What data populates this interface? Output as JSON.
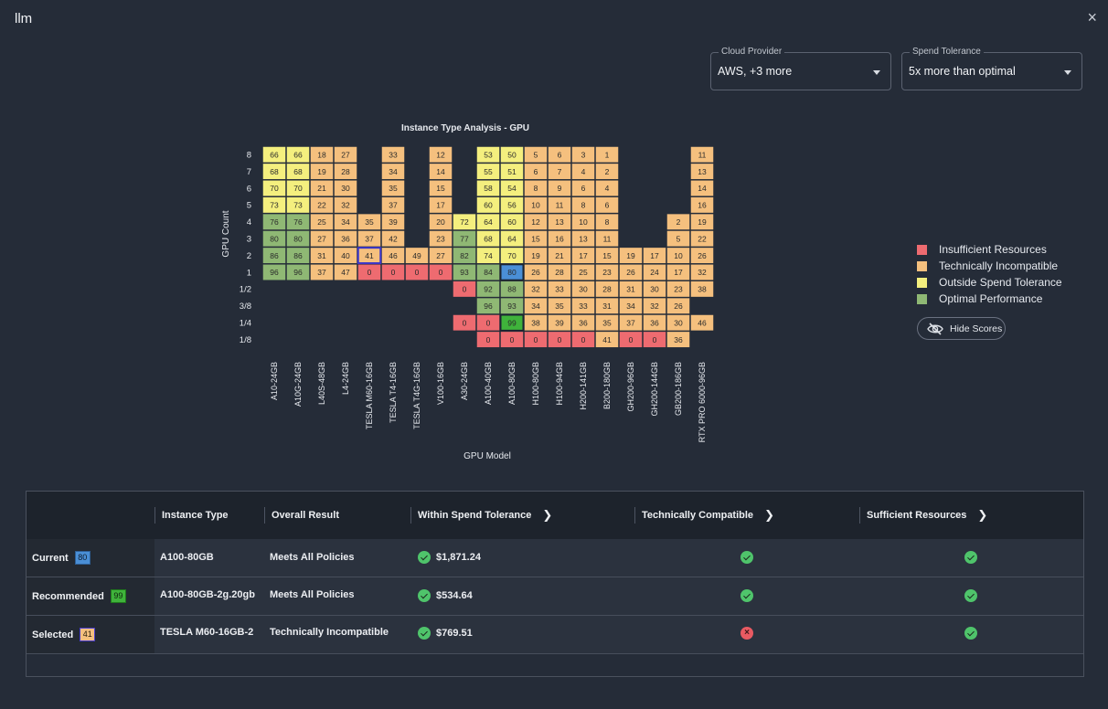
{
  "window": {
    "title": "llm",
    "close_label": "×"
  },
  "filters": {
    "cloud_provider": {
      "label": "Cloud Provider",
      "value": "AWS, +3 more"
    },
    "spend_tolerance": {
      "label": "Spend Tolerance",
      "value": "5x more than optimal"
    }
  },
  "colors": {
    "red": "#ee6b70",
    "orange": "#f5c07e",
    "yellow": "#f4ef7e",
    "green": "#8fb874",
    "blue": "#4a8fd6",
    "darkgreen": "#3fb33b"
  },
  "chart_data": {
    "type": "heatmap",
    "title": "Instance Type Analysis - GPU",
    "xlabel": "GPU Model",
    "ylabel": "GPU Count",
    "x": [
      "A10-24GB",
      "A10G-24GB",
      "L40S-48GB",
      "L4-24GB",
      "TESLA M60-16GB",
      "TESLA T4-16GB",
      "TESLA T4G-16GB",
      "V100-16GB",
      "A30-24GB",
      "A100-40GB",
      "A100-80GB",
      "H100-80GB",
      "H100-94GB",
      "H200-141GB",
      "B200-180GB",
      "GH200-96GB",
      "GH200-144GB",
      "GB200-186GB",
      "RTX PRO 6000-96GB"
    ],
    "y": [
      "8",
      "7",
      "6",
      "5",
      "4",
      "3",
      "2",
      "1",
      "1/2",
      "3/8",
      "1/4",
      "1/8"
    ],
    "category_codes": {
      "r": "Insufficient Resources",
      "o": "Technically Incompatible",
      "y": "Outside Spend Tolerance",
      "g": "Optimal Performance",
      "b": "Current",
      "G": "Recommended"
    },
    "cells": [
      [
        [
          66,
          "y"
        ],
        [
          66,
          "y"
        ],
        [
          18,
          "o"
        ],
        [
          27,
          "o"
        ],
        null,
        [
          33,
          "o"
        ],
        null,
        [
          12,
          "o"
        ],
        null,
        [
          53,
          "y"
        ],
        [
          50,
          "y"
        ],
        [
          5,
          "o"
        ],
        [
          6,
          "o"
        ],
        [
          3,
          "o"
        ],
        [
          1,
          "o"
        ],
        null,
        null,
        null,
        [
          11,
          "o"
        ]
      ],
      [
        [
          68,
          "y"
        ],
        [
          68,
          "y"
        ],
        [
          19,
          "o"
        ],
        [
          28,
          "o"
        ],
        null,
        [
          34,
          "o"
        ],
        null,
        [
          14,
          "o"
        ],
        null,
        [
          55,
          "y"
        ],
        [
          51,
          "y"
        ],
        [
          6,
          "o"
        ],
        [
          7,
          "o"
        ],
        [
          4,
          "o"
        ],
        [
          2,
          "o"
        ],
        null,
        null,
        null,
        [
          13,
          "o"
        ]
      ],
      [
        [
          70,
          "y"
        ],
        [
          70,
          "y"
        ],
        [
          21,
          "o"
        ],
        [
          30,
          "o"
        ],
        null,
        [
          35,
          "o"
        ],
        null,
        [
          15,
          "o"
        ],
        null,
        [
          58,
          "y"
        ],
        [
          54,
          "y"
        ],
        [
          8,
          "o"
        ],
        [
          9,
          "o"
        ],
        [
          6,
          "o"
        ],
        [
          4,
          "o"
        ],
        null,
        null,
        null,
        [
          14,
          "o"
        ]
      ],
      [
        [
          73,
          "y"
        ],
        [
          73,
          "y"
        ],
        [
          22,
          "o"
        ],
        [
          32,
          "o"
        ],
        null,
        [
          37,
          "o"
        ],
        null,
        [
          17,
          "o"
        ],
        null,
        [
          60,
          "y"
        ],
        [
          56,
          "y"
        ],
        [
          10,
          "o"
        ],
        [
          11,
          "o"
        ],
        [
          8,
          "o"
        ],
        [
          6,
          "o"
        ],
        null,
        null,
        null,
        [
          16,
          "o"
        ]
      ],
      [
        [
          76,
          "g"
        ],
        [
          76,
          "g"
        ],
        [
          25,
          "o"
        ],
        [
          34,
          "o"
        ],
        [
          35,
          "o"
        ],
        [
          39,
          "o"
        ],
        null,
        [
          20,
          "o"
        ],
        [
          72,
          "y"
        ],
        [
          64,
          "y"
        ],
        [
          60,
          "y"
        ],
        [
          12,
          "o"
        ],
        [
          13,
          "o"
        ],
        [
          10,
          "o"
        ],
        [
          8,
          "o"
        ],
        null,
        null,
        [
          2,
          "o"
        ],
        [
          19,
          "o"
        ]
      ],
      [
        [
          80,
          "g"
        ],
        [
          80,
          "g"
        ],
        [
          27,
          "o"
        ],
        [
          36,
          "o"
        ],
        [
          37,
          "o"
        ],
        [
          42,
          "o"
        ],
        null,
        [
          23,
          "o"
        ],
        [
          77,
          "g"
        ],
        [
          68,
          "y"
        ],
        [
          64,
          "y"
        ],
        [
          15,
          "o"
        ],
        [
          16,
          "o"
        ],
        [
          13,
          "o"
        ],
        [
          11,
          "o"
        ],
        null,
        null,
        [
          5,
          "o"
        ],
        [
          22,
          "o"
        ]
      ],
      [
        [
          86,
          "g"
        ],
        [
          86,
          "g"
        ],
        [
          31,
          "o"
        ],
        [
          40,
          "o"
        ],
        [
          41,
          "o"
        ],
        [
          46,
          "o"
        ],
        [
          49,
          "o"
        ],
        [
          27,
          "o"
        ],
        [
          82,
          "g"
        ],
        [
          74,
          "y"
        ],
        [
          70,
          "y"
        ],
        [
          19,
          "o"
        ],
        [
          21,
          "o"
        ],
        [
          17,
          "o"
        ],
        [
          15,
          "o"
        ],
        [
          19,
          "o"
        ],
        [
          17,
          "o"
        ],
        [
          10,
          "o"
        ],
        [
          26,
          "o"
        ]
      ],
      [
        [
          96,
          "g"
        ],
        [
          96,
          "g"
        ],
        [
          37,
          "o"
        ],
        [
          47,
          "o"
        ],
        [
          0,
          "r"
        ],
        [
          0,
          "r"
        ],
        [
          0,
          "r"
        ],
        [
          0,
          "r"
        ],
        [
          93,
          "g"
        ],
        [
          84,
          "g"
        ],
        [
          80,
          "b"
        ],
        [
          26,
          "o"
        ],
        [
          28,
          "o"
        ],
        [
          25,
          "o"
        ],
        [
          23,
          "o"
        ],
        [
          26,
          "o"
        ],
        [
          24,
          "o"
        ],
        [
          17,
          "o"
        ],
        [
          32,
          "o"
        ]
      ],
      [
        null,
        null,
        null,
        null,
        null,
        null,
        null,
        null,
        [
          0,
          "r"
        ],
        [
          92,
          "g"
        ],
        [
          88,
          "g"
        ],
        [
          32,
          "o"
        ],
        [
          33,
          "o"
        ],
        [
          30,
          "o"
        ],
        [
          28,
          "o"
        ],
        [
          31,
          "o"
        ],
        [
          30,
          "o"
        ],
        [
          23,
          "o"
        ],
        [
          38,
          "o"
        ]
      ],
      [
        null,
        null,
        null,
        null,
        null,
        null,
        null,
        null,
        null,
        [
          96,
          "g"
        ],
        [
          93,
          "g"
        ],
        [
          34,
          "o"
        ],
        [
          35,
          "o"
        ],
        [
          33,
          "o"
        ],
        [
          31,
          "o"
        ],
        [
          34,
          "o"
        ],
        [
          32,
          "o"
        ],
        [
          26,
          "o"
        ],
        null
      ],
      [
        null,
        null,
        null,
        null,
        null,
        null,
        null,
        null,
        [
          0,
          "r"
        ],
        [
          0,
          "r"
        ],
        [
          99,
          "G"
        ],
        [
          38,
          "o"
        ],
        [
          39,
          "o"
        ],
        [
          36,
          "o"
        ],
        [
          35,
          "o"
        ],
        [
          37,
          "o"
        ],
        [
          36,
          "o"
        ],
        [
          30,
          "o"
        ],
        [
          46,
          "o"
        ]
      ],
      [
        null,
        null,
        null,
        null,
        null,
        null,
        null,
        null,
        null,
        [
          0,
          "r"
        ],
        [
          0,
          "r"
        ],
        [
          0,
          "r"
        ],
        [
          0,
          "r"
        ],
        [
          0,
          "r"
        ],
        [
          41,
          "o"
        ],
        [
          0,
          "r"
        ],
        [
          0,
          "r"
        ],
        [
          36,
          "o"
        ],
        null
      ]
    ],
    "selected_cell": {
      "x": "TESLA M60-16GB",
      "y": "2",
      "value": 41
    },
    "legend": [
      {
        "label": "Insufficient Resources",
        "color": "#ee6b70"
      },
      {
        "label": "Technically Incompatible",
        "color": "#f5c07e"
      },
      {
        "label": "Outside Spend Tolerance",
        "color": "#f4ef7e"
      },
      {
        "label": "Optimal Performance",
        "color": "#8fb874"
      }
    ],
    "legend_position": "right"
  },
  "hide_scores": {
    "label": "Hide Scores",
    "icon": "eye-off-icon"
  },
  "table": {
    "headers": {
      "instance_type": "Instance Type",
      "overall_result": "Overall Result",
      "spend": "Within Spend Tolerance",
      "compatible": "Technically Compatible",
      "resources": "Sufficient Resources"
    },
    "rows": [
      {
        "label": "Current",
        "score": "80",
        "score_color": "#4a8fd6",
        "instance": "A100-80GB",
        "result": "Meets All Policies",
        "spend": "$1,871.24",
        "compatible": "ok",
        "resources": "ok"
      },
      {
        "label": "Recommended",
        "score": "99",
        "score_color": "#3fb33b",
        "instance": "A100-80GB-2g.20gb",
        "result": "Meets All Policies",
        "spend": "$534.64",
        "compatible": "ok",
        "resources": "ok"
      },
      {
        "label": "Selected",
        "score": "41",
        "score_color": "#f5c07e",
        "instance": "TESLA M60-16GB-2",
        "result": "Technically Incompatible",
        "spend": "$769.51",
        "compatible": "fail",
        "resources": "ok"
      }
    ]
  }
}
